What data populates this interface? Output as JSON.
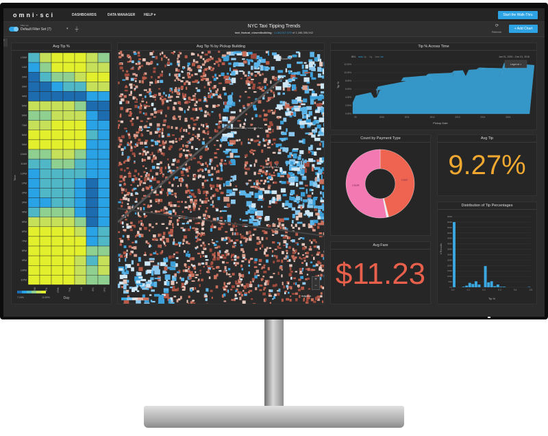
{
  "nav": {
    "logo": "omni·sci",
    "items": [
      "DASHBOARDS",
      "DATA MANAGER",
      "HELP ▾"
    ],
    "walkthru": "Start the Walk-Thru"
  },
  "filter": {
    "caption": "Filter set",
    "value": "Default Filter Set (7)",
    "title": "NYC Taxi Tipping Trends",
    "table": "taxi_factual_closestbuilding",
    "count_filtered": "1,181,017,479",
    "count_of": "of 1,186,355,942",
    "refresh": "Refresh",
    "add_chart": "+ Add Chart"
  },
  "colors": {
    "accent": "#2ea3e3",
    "avg_tip": "#f0a830",
    "avg_fare": "#e8604c",
    "credit": "#f279b2",
    "cash": "#ef6451",
    "bars": "#3aa7e0"
  },
  "panels": {
    "heatmap": "Avg Tip %",
    "map": "Avg Tip % by Pickup Building",
    "time": "Tip % Across Time",
    "payment": "Count by Payment Type",
    "avg_tip": "Avg Tip",
    "avg_fare": "Avg Fare",
    "dist": "Distribution of Tip Percentages"
  },
  "map": {
    "zoom_to": "Zoom to",
    "place1": "East Williamsburg Industrial Park",
    "place2": "LINDEN HILL",
    "attribution": "mapbox"
  },
  "kpi": {
    "avg_tip": "9.27%",
    "avg_fare": "$11.23"
  },
  "chart_data": [
    {
      "type": "heatmap",
      "title": "Avg Tip %",
      "xlabel": "Day",
      "ylabel": "Time",
      "x": [
        "Mon",
        "Tue",
        "Wed",
        "Thu",
        "Fri",
        "Sat",
        "Sun"
      ],
      "y": [
        "12AM",
        "1AM",
        "2AM",
        "3AM",
        "4AM",
        "5AM",
        "6AM",
        "7AM",
        "8AM",
        "9AM",
        "10AM",
        "11AM",
        "12PM",
        "1PM",
        "2PM",
        "3PM",
        "4PM",
        "5PM",
        "6PM",
        "7PM",
        "8PM",
        "9PM",
        "10PM",
        "11PM"
      ],
      "legend_min": "7.24%",
      "legend_max": "10.83%",
      "range": [
        7.24,
        10.83
      ],
      "values": [
        [
          8.7,
          10.1,
          10.8,
          10.8,
          10.8,
          10.1,
          9.4
        ],
        [
          8.0,
          9.4,
          10.8,
          10.8,
          10.8,
          10.1,
          10.1
        ],
        [
          7.3,
          8.7,
          9.4,
          9.4,
          10.1,
          10.8,
          10.8
        ],
        [
          7.3,
          7.3,
          8.0,
          8.7,
          8.7,
          10.1,
          10.1
        ],
        [
          7.3,
          7.3,
          7.3,
          7.3,
          7.3,
          8.0,
          8.0
        ],
        [
          10.1,
          10.1,
          10.1,
          10.1,
          9.4,
          7.3,
          7.3
        ],
        [
          9.4,
          9.4,
          10.1,
          10.1,
          10.1,
          8.0,
          7.3
        ],
        [
          10.1,
          10.1,
          10.8,
          10.8,
          10.8,
          8.0,
          8.0
        ],
        [
          10.8,
          10.8,
          10.8,
          10.8,
          10.8,
          8.7,
          8.0
        ],
        [
          10.8,
          10.8,
          10.8,
          10.8,
          10.8,
          8.0,
          8.0
        ],
        [
          9.4,
          9.4,
          10.1,
          10.1,
          9.4,
          8.0,
          8.0
        ],
        [
          8.7,
          8.7,
          9.4,
          9.4,
          8.7,
          8.0,
          8.0
        ],
        [
          8.0,
          8.7,
          8.7,
          8.7,
          8.7,
          8.0,
          8.0
        ],
        [
          8.0,
          8.7,
          8.7,
          8.7,
          8.0,
          7.3,
          8.0
        ],
        [
          8.0,
          8.7,
          8.7,
          8.7,
          8.0,
          7.3,
          8.0
        ],
        [
          8.0,
          8.0,
          8.7,
          8.7,
          8.0,
          7.3,
          8.0
        ],
        [
          8.7,
          9.4,
          9.4,
          9.4,
          8.0,
          7.3,
          8.0
        ],
        [
          10.1,
          10.1,
          10.1,
          10.1,
          9.4,
          7.3,
          8.0
        ],
        [
          10.8,
          10.8,
          10.8,
          10.8,
          10.1,
          8.0,
          8.7
        ],
        [
          10.8,
          10.8,
          10.8,
          10.8,
          10.8,
          8.0,
          8.7
        ],
        [
          10.8,
          10.8,
          10.8,
          10.8,
          10.8,
          9.4,
          9.4
        ],
        [
          10.8,
          10.8,
          10.8,
          10.8,
          10.1,
          8.7,
          10.1
        ],
        [
          10.8,
          10.8,
          10.8,
          10.8,
          10.1,
          9.4,
          10.1
        ],
        [
          10.8,
          10.8,
          10.8,
          10.8,
          10.1,
          9.4,
          9.4
        ]
      ]
    },
    {
      "type": "area",
      "title": "Tip % Across Time",
      "xlabel": "Pickup Date",
      "ylabel": "Tip %",
      "date_range": "Jan 01, 2009 – Dec 31, 2015",
      "bin_label": "BIN:",
      "bins": [
        "auto",
        "1y",
        "1q",
        "1mo",
        "1w"
      ],
      "active_bin": "1w",
      "legend": "Legend >",
      "yticks": [
        "0.00%",
        "2.00%",
        "4.00%",
        "6.00%",
        "8.00%",
        "10.00%",
        "12.00%"
      ],
      "ylim": [
        0,
        13
      ],
      "xticks": [
        "09",
        "2010",
        "2011",
        "2012",
        "2013",
        "2014",
        "2015"
      ],
      "points": [
        [
          "2009-01",
          4.2
        ],
        [
          "2009-12",
          5.8
        ],
        [
          "2010-01",
          6.6
        ],
        [
          "2010-12",
          8.0
        ],
        [
          "2011-01",
          8.8
        ],
        [
          "2011-12",
          9.4
        ],
        [
          "2012-01",
          9.7
        ],
        [
          "2012-12",
          10.0
        ],
        [
          "2013-01",
          10.4
        ],
        [
          "2013-12",
          10.9
        ],
        [
          "2014-01",
          11.2
        ],
        [
          "2014-12",
          11.0
        ],
        [
          "2015-01",
          12.4
        ],
        [
          "2015-12",
          11.8
        ]
      ]
    },
    {
      "type": "pie",
      "title": "Count by Payment Type",
      "donut": true,
      "slices": [
        {
          "name": "Credit",
          "share": 0.53
        },
        {
          "name": "Cash",
          "share": 0.46
        },
        {
          "name": "",
          "share": 0.01
        }
      ]
    },
    {
      "type": "bar",
      "title": "Distribution of Tip Percentages",
      "xlabel": "Tip %",
      "ylabel": "# Records",
      "xticks": [
        "0.0",
        "0.1",
        "0.2",
        "0.3",
        "0.4",
        "0.5"
      ],
      "xlim": [
        0,
        0.5
      ],
      "yticks": [
        "0.0",
        "50M",
        "100M",
        "150M",
        "200M",
        "250M",
        "300M",
        "350M",
        "400M",
        "450M",
        "500M",
        "550M",
        "600M",
        "650M"
      ],
      "ylim": [
        0,
        650
      ],
      "bins": [
        [
          0.0,
          600
        ],
        [
          0.06,
          5
        ],
        [
          0.08,
          15
        ],
        [
          0.1,
          40
        ],
        [
          0.12,
          30
        ],
        [
          0.14,
          55
        ],
        [
          0.16,
          25
        ],
        [
          0.2,
          195
        ],
        [
          0.22,
          45
        ],
        [
          0.24,
          55
        ],
        [
          0.26,
          10
        ],
        [
          0.28,
          25
        ],
        [
          0.3,
          5
        ],
        [
          0.32,
          5
        ],
        [
          0.48,
          3
        ]
      ]
    }
  ]
}
